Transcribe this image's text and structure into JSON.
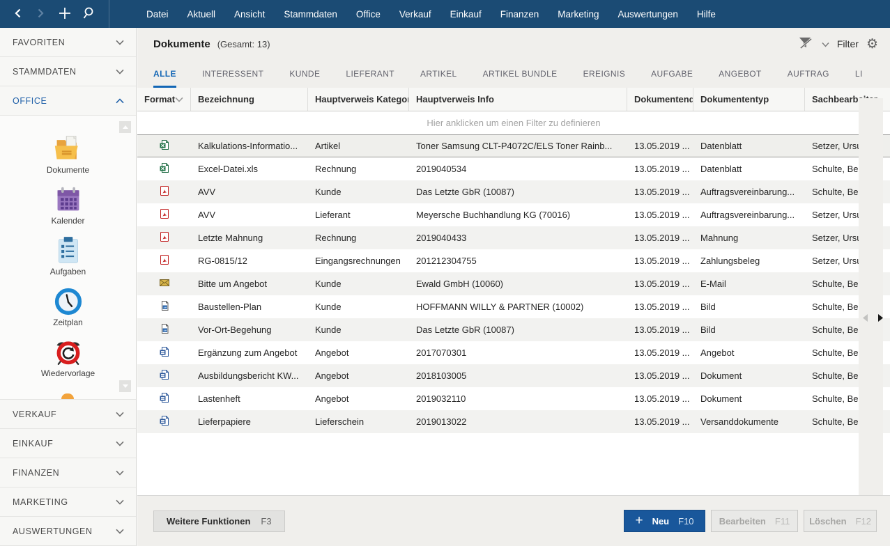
{
  "topbar": {
    "icons": [
      "back-icon",
      "forward-icon",
      "add-icon",
      "search-icon"
    ],
    "menu": [
      "Datei",
      "Aktuell",
      "Ansicht",
      "Stammdaten",
      "Office",
      "Verkauf",
      "Einkauf",
      "Finanzen",
      "Marketing",
      "Auswertungen",
      "Hilfe"
    ]
  },
  "sidebar": {
    "sections_top": [
      {
        "label": "FAVORITEN",
        "state": "collapsed",
        "active": false
      },
      {
        "label": "STAMMDATEN",
        "state": "collapsed",
        "active": false
      },
      {
        "label": "OFFICE",
        "state": "expanded",
        "active": true
      }
    ],
    "office_items": [
      {
        "label": "Dokumente",
        "icon": "folder-documents-icon"
      },
      {
        "label": "Kalender",
        "icon": "calendar-icon"
      },
      {
        "label": "Aufgaben",
        "icon": "tasks-clipboard-icon"
      },
      {
        "label": "Zeitplan",
        "icon": "clock-icon"
      },
      {
        "label": "Wiedervorlage",
        "icon": "alarm-clock-icon"
      }
    ],
    "sections_bottom": [
      {
        "label": "VERKAUF"
      },
      {
        "label": "EINKAUF"
      },
      {
        "label": "FINANZEN"
      },
      {
        "label": "MARKETING"
      },
      {
        "label": "AUSWERTUNGEN"
      }
    ]
  },
  "header": {
    "title": "Dokumente",
    "total": "(Gesamt: 13)",
    "filter_label": "Filter",
    "icons": [
      "clear-filter-icon",
      "chevron-down-icon",
      "gear-icon"
    ]
  },
  "tabs": [
    "ALLE",
    "INTERESSENT",
    "KUNDE",
    "LIEFERANT",
    "ARTIKEL",
    "ARTIKEL BUNDLE",
    "EREIGNIS",
    "AUFGABE",
    "ANGEBOT",
    "AUFTRAG",
    "LI"
  ],
  "active_tab": "ALLE",
  "table": {
    "columns": [
      "Format",
      "Bezeichnung",
      "Hauptverweis Kategorie",
      "Hauptverweis Info",
      "Dokumentendatum",
      "Dokumententyp",
      "Sachbearbeiter"
    ],
    "filter_hint": "Hier anklicken um einen Filter zu definieren",
    "rows": [
      {
        "icon": "excel-file-icon",
        "bezeichnung": "Kalkulations-Informatio...",
        "kategorie": "Artikel",
        "info": "Toner Samsung CLT-P4072C/ELS Toner Rainb...",
        "datum": "13.05.2019 ...",
        "typ": "Datenblatt",
        "sachbearbeiter": "Setzer, Ursula",
        "selected": true
      },
      {
        "icon": "excel-file-icon",
        "bezeichnung": "Excel-Datei.xls",
        "kategorie": "Rechnung",
        "info": "2019040534",
        "datum": "13.05.2019 ...",
        "typ": "Datenblatt",
        "sachbearbeiter": "Schulte, Bernd",
        "selected": false
      },
      {
        "icon": "pdf-file-icon",
        "bezeichnung": "AVV",
        "kategorie": "Kunde",
        "info": "Das Letzte GbR (10087)",
        "datum": "13.05.2019 ...",
        "typ": "Auftragsvereinbarung...",
        "sachbearbeiter": "Schulte, Bernd",
        "selected": false
      },
      {
        "icon": "pdf-file-icon",
        "bezeichnung": "AVV",
        "kategorie": "Lieferant",
        "info": "Meyersche Buchhandlung KG (70016)",
        "datum": "13.05.2019 ...",
        "typ": "Auftragsvereinbarung...",
        "sachbearbeiter": "Setzer, Ursula",
        "selected": false
      },
      {
        "icon": "pdf-file-icon",
        "bezeichnung": "Letzte Mahnung",
        "kategorie": "Rechnung",
        "info": "2019040433",
        "datum": "13.05.2019 ...",
        "typ": "Mahnung",
        "sachbearbeiter": "Setzer, Ursula",
        "selected": false
      },
      {
        "icon": "pdf-file-icon",
        "bezeichnung": "RG-0815/12",
        "kategorie": "Eingangsrechnungen",
        "info": "201212304755",
        "datum": "13.05.2019 ...",
        "typ": "Zahlungsbeleg",
        "sachbearbeiter": "Setzer, Ursula",
        "selected": false
      },
      {
        "icon": "email-file-icon",
        "bezeichnung": "Bitte um Angebot",
        "kategorie": "Kunde",
        "info": "Ewald GmbH (10060)",
        "datum": "13.05.2019 ...",
        "typ": "E-Mail",
        "sachbearbeiter": "Schulte, Bernd",
        "selected": false
      },
      {
        "icon": "image-file-icon",
        "bezeichnung": "Baustellen-Plan",
        "kategorie": "Kunde",
        "info": "HOFFMANN WILLY & PARTNER (10002)",
        "datum": "13.05.2019 ...",
        "typ": "Bild",
        "sachbearbeiter": "Schulte, Bernd",
        "selected": false
      },
      {
        "icon": "image-file-icon",
        "bezeichnung": "Vor-Ort-Begehung",
        "kategorie": "Kunde",
        "info": "Das Letzte GbR (10087)",
        "datum": "13.05.2019 ...",
        "typ": "Bild",
        "sachbearbeiter": "Schulte, Bernd",
        "selected": false
      },
      {
        "icon": "word-file-icon",
        "bezeichnung": "Ergänzung zum Angebot",
        "kategorie": "Angebot",
        "info": "2017070301",
        "datum": "13.05.2019 ...",
        "typ": "Angebot",
        "sachbearbeiter": "Schulte, Bernd",
        "selected": false
      },
      {
        "icon": "word-file-icon",
        "bezeichnung": "Ausbildungsbericht KW...",
        "kategorie": "Angebot",
        "info": "2018103005",
        "datum": "13.05.2019 ...",
        "typ": "Dokument",
        "sachbearbeiter": "Schulte, Bernd",
        "selected": false
      },
      {
        "icon": "word-file-icon",
        "bezeichnung": "Lastenheft",
        "kategorie": "Angebot",
        "info": "2019032110",
        "datum": "13.05.2019 ...",
        "typ": "Dokument",
        "sachbearbeiter": "Schulte, Bernd",
        "selected": false
      },
      {
        "icon": "word-file-icon",
        "bezeichnung": "Lieferpapiere",
        "kategorie": "Lieferschein",
        "info": "2019013022",
        "datum": "13.05.2019 ...",
        "typ": "Versanddokumente",
        "sachbearbeiter": "Schulte, Bernd",
        "selected": false
      }
    ]
  },
  "footer": {
    "more_label": "Weitere Funktionen",
    "more_key": "F3",
    "new_label": "Neu",
    "new_key": "F10",
    "edit_label": "Bearbeiten",
    "edit_key": "F11",
    "delete_label": "Löschen",
    "delete_key": "F12"
  },
  "colors": {
    "topbar": "#1b4b74",
    "accent": "#1266b5",
    "active_section": "#1e5fa8",
    "new_button": "#19579b",
    "selected_row_border": "#999997",
    "stripe": "#f2f2f0",
    "excel": "#1e7145",
    "word": "#2b579a",
    "pdf": "#c11e1e",
    "email": "#8a6d1f"
  }
}
